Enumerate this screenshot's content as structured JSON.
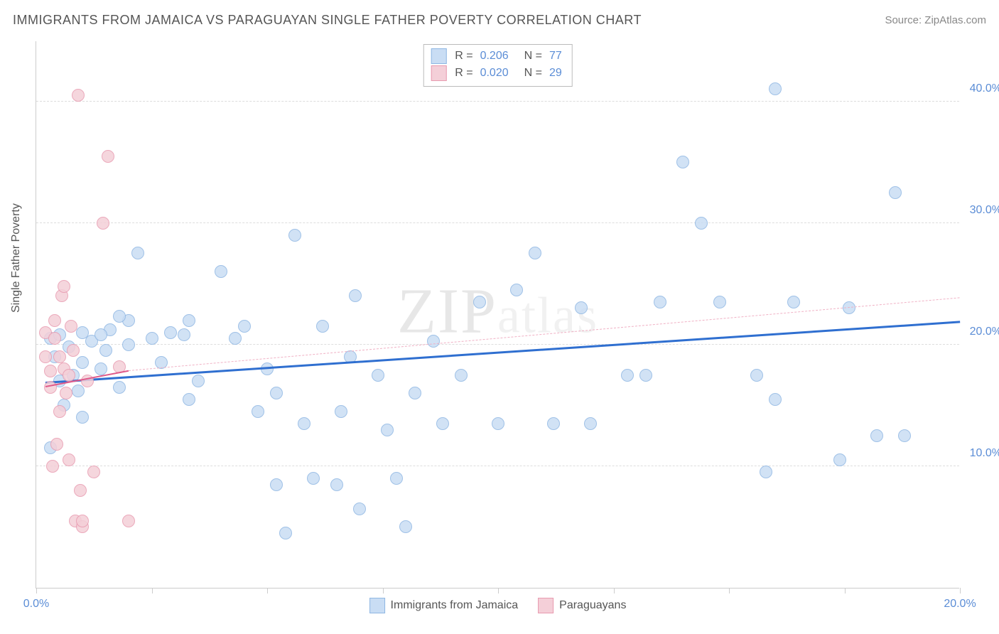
{
  "title": "IMMIGRANTS FROM JAMAICA VS PARAGUAYAN SINGLE FATHER POVERTY CORRELATION CHART",
  "source": "Source: ZipAtlas.com",
  "y_axis_title": "Single Father Poverty",
  "watermark": {
    "line1": "ZIP",
    "line2": "atlas"
  },
  "chart": {
    "type": "scatter",
    "xlim": [
      0,
      20
    ],
    "ylim": [
      0,
      45
    ],
    "y_gridlines": [
      10,
      20,
      30,
      40
    ],
    "y_tick_labels": [
      "10.0%",
      "20.0%",
      "30.0%",
      "40.0%"
    ],
    "x_ticks": [
      0,
      2.5,
      5,
      7.5,
      10,
      12.5,
      15,
      17.5,
      20
    ],
    "x_tick_labels": {
      "0": "0.0%",
      "20": "20.0%"
    },
    "background_color": "#ffffff",
    "grid_color": "#dddddd",
    "series": [
      {
        "id": "jamaica",
        "label": "Immigrants from Jamaica",
        "r_value": "0.206",
        "n_value": "77",
        "marker_fill": "#c9ddf4",
        "marker_stroke": "#8fb7e3",
        "marker_size": 18,
        "marker_opacity": 0.85,
        "trend": {
          "x1": 0.2,
          "y1": 16.8,
          "x2": 20,
          "y2": 21.8,
          "color": "#2f6fd0",
          "width": 3,
          "dashed": false
        },
        "points": [
          [
            0.3,
            20.5
          ],
          [
            0.4,
            19.0
          ],
          [
            0.5,
            17.0
          ],
          [
            0.5,
            20.8
          ],
          [
            0.7,
            19.8
          ],
          [
            0.8,
            17.5
          ],
          [
            0.9,
            16.2
          ],
          [
            1.0,
            21.0
          ],
          [
            1.0,
            18.5
          ],
          [
            1.2,
            20.3
          ],
          [
            1.4,
            18.0
          ],
          [
            1.5,
            19.5
          ],
          [
            1.6,
            21.2
          ],
          [
            1.8,
            16.5
          ],
          [
            2.0,
            20.0
          ],
          [
            2.0,
            22.0
          ],
          [
            2.2,
            27.5
          ],
          [
            2.5,
            20.5
          ],
          [
            2.7,
            18.5
          ],
          [
            2.9,
            21.0
          ],
          [
            3.2,
            20.8
          ],
          [
            3.3,
            15.5
          ],
          [
            3.3,
            22.0
          ],
          [
            3.5,
            17.0
          ],
          [
            4.0,
            26.0
          ],
          [
            4.3,
            20.5
          ],
          [
            4.5,
            21.5
          ],
          [
            4.8,
            14.5
          ],
          [
            5.0,
            18.0
          ],
          [
            5.2,
            8.5
          ],
          [
            5.2,
            16.0
          ],
          [
            5.4,
            4.5
          ],
          [
            5.6,
            29.0
          ],
          [
            5.8,
            13.5
          ],
          [
            6.0,
            9.0
          ],
          [
            6.2,
            21.5
          ],
          [
            6.5,
            8.5
          ],
          [
            6.6,
            14.5
          ],
          [
            6.8,
            19.0
          ],
          [
            6.9,
            24.0
          ],
          [
            7.0,
            6.5
          ],
          [
            7.4,
            17.5
          ],
          [
            7.6,
            13.0
          ],
          [
            7.8,
            9.0
          ],
          [
            8.0,
            5.0
          ],
          [
            8.2,
            16.0
          ],
          [
            8.6,
            20.3
          ],
          [
            8.8,
            13.5
          ],
          [
            9.2,
            17.5
          ],
          [
            9.6,
            23.5
          ],
          [
            10.0,
            13.5
          ],
          [
            10.4,
            24.5
          ],
          [
            10.8,
            27.5
          ],
          [
            11.2,
            13.5
          ],
          [
            11.8,
            23.0
          ],
          [
            12.0,
            13.5
          ],
          [
            12.8,
            17.5
          ],
          [
            13.2,
            17.5
          ],
          [
            13.5,
            23.5
          ],
          [
            14.0,
            35.0
          ],
          [
            14.4,
            30.0
          ],
          [
            14.8,
            23.5
          ],
          [
            15.6,
            17.5
          ],
          [
            15.8,
            9.5
          ],
          [
            16.0,
            41.0
          ],
          [
            16.0,
            15.5
          ],
          [
            16.4,
            23.5
          ],
          [
            17.4,
            10.5
          ],
          [
            17.6,
            23.0
          ],
          [
            18.2,
            12.5
          ],
          [
            18.6,
            32.5
          ],
          [
            18.8,
            12.5
          ],
          [
            0.3,
            11.5
          ],
          [
            0.6,
            15.0
          ],
          [
            1.0,
            14.0
          ],
          [
            1.4,
            20.8
          ],
          [
            1.8,
            22.3
          ]
        ]
      },
      {
        "id": "paraguay",
        "label": "Paraguayans",
        "r_value": "0.020",
        "n_value": "29",
        "marker_fill": "#f4cfd8",
        "marker_stroke": "#e89bb0",
        "marker_size": 18,
        "marker_opacity": 0.85,
        "trend": {
          "x1": 0.2,
          "y1": 16.5,
          "x2": 2.0,
          "y2": 17.8,
          "color": "#e05a8a",
          "width": 2,
          "dashed": false
        },
        "trend_ext": {
          "x1": 2.0,
          "y1": 17.8,
          "x2": 20,
          "y2": 23.8,
          "color": "#f0b0c4",
          "width": 1,
          "dashed": true
        },
        "points": [
          [
            0.2,
            21.0
          ],
          [
            0.2,
            19.0
          ],
          [
            0.3,
            16.5
          ],
          [
            0.3,
            17.8
          ],
          [
            0.35,
            10.0
          ],
          [
            0.4,
            20.5
          ],
          [
            0.4,
            22.0
          ],
          [
            0.45,
            11.8
          ],
          [
            0.5,
            19.0
          ],
          [
            0.5,
            14.5
          ],
          [
            0.55,
            24.0
          ],
          [
            0.6,
            24.8
          ],
          [
            0.6,
            18.0
          ],
          [
            0.65,
            16.0
          ],
          [
            0.7,
            17.5
          ],
          [
            0.7,
            10.5
          ],
          [
            0.75,
            21.5
          ],
          [
            0.8,
            19.5
          ],
          [
            0.85,
            5.5
          ],
          [
            0.9,
            40.5
          ],
          [
            0.95,
            8.0
          ],
          [
            1.0,
            5.0
          ],
          [
            1.0,
            5.5
          ],
          [
            1.1,
            17.0
          ],
          [
            1.25,
            9.5
          ],
          [
            1.45,
            30.0
          ],
          [
            1.55,
            35.5
          ],
          [
            1.8,
            18.2
          ],
          [
            2.0,
            5.5
          ]
        ]
      }
    ]
  }
}
